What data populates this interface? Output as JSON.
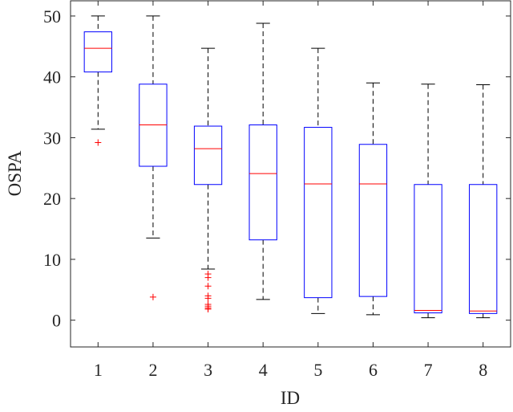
{
  "chart_data": {
    "type": "boxplot",
    "xlabel": "ID",
    "ylabel": "OSPA",
    "categories": [
      "1",
      "2",
      "3",
      "4",
      "5",
      "6",
      "7",
      "8"
    ],
    "ylim": [
      -4.4,
      52.5
    ],
    "yticks": [
      "0",
      "10",
      "20",
      "30",
      "40",
      "50"
    ],
    "grid": false,
    "colors": {
      "box": "#0000ff",
      "median": "#ff0000",
      "whisker": "#000000",
      "outlier": "#ff0000"
    },
    "boxes": [
      {
        "whisker_high": 50.0,
        "q3": 47.4,
        "median": 44.7,
        "q1": 40.8,
        "whisker_low": 31.4,
        "outliers": [
          29.2
        ]
      },
      {
        "whisker_high": 50.0,
        "q3": 38.8,
        "median": 32.1,
        "q1": 25.3,
        "whisker_low": 13.5,
        "outliers": [
          3.8
        ]
      },
      {
        "whisker_high": 44.7,
        "q3": 31.9,
        "median": 28.2,
        "q1": 22.3,
        "whisker_low": 8.4,
        "outliers": [
          7.6,
          7.0,
          5.6,
          4.0,
          3.6,
          2.6,
          2.3,
          2.0,
          1.8
        ]
      },
      {
        "whisker_high": 48.8,
        "q3": 32.1,
        "median": 24.1,
        "q1": 13.2,
        "whisker_low": 3.4,
        "outliers": []
      },
      {
        "whisker_high": 44.7,
        "q3": 31.7,
        "median": 22.4,
        "q1": 3.7,
        "whisker_low": 1.1,
        "outliers": []
      },
      {
        "whisker_high": 39.0,
        "q3": 28.9,
        "median": 22.4,
        "q1": 3.9,
        "whisker_low": 0.9,
        "outliers": []
      },
      {
        "whisker_high": 38.8,
        "q3": 22.3,
        "median": 1.6,
        "q1": 1.2,
        "whisker_low": 0.4,
        "outliers": []
      },
      {
        "whisker_high": 38.7,
        "q3": 22.3,
        "median": 1.5,
        "q1": 1.1,
        "whisker_low": 0.4,
        "outliers": []
      }
    ]
  }
}
